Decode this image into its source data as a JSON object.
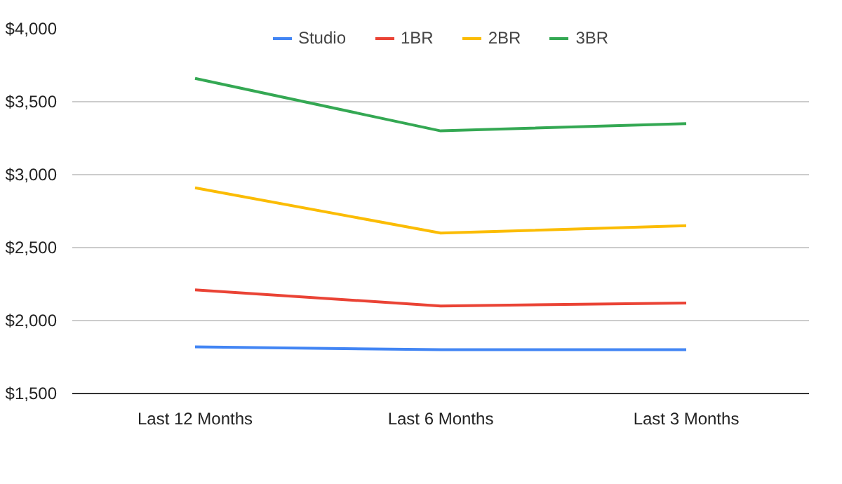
{
  "chart_data": {
    "type": "line",
    "categories": [
      "Last 12 Months",
      "Last 6 Months",
      "Last 3 Months"
    ],
    "series": [
      {
        "name": "Studio",
        "color": "#4285f4",
        "values": [
          1820,
          1800,
          1800
        ]
      },
      {
        "name": "1BR",
        "color": "#ea4335",
        "values": [
          2210,
          2100,
          2120
        ]
      },
      {
        "name": "2BR",
        "color": "#fbbc04",
        "values": [
          2910,
          2600,
          2650
        ]
      },
      {
        "name": "3BR",
        "color": "#34a853",
        "values": [
          3660,
          3300,
          3350
        ]
      }
    ],
    "ylim": [
      1500,
      4000
    ],
    "yticks": [
      {
        "value": 1500,
        "label": "$1,500"
      },
      {
        "value": 2000,
        "label": "$2,000"
      },
      {
        "value": 2500,
        "label": "$2,500"
      },
      {
        "value": 3000,
        "label": "$3,000"
      },
      {
        "value": 3500,
        "label": "$3,500"
      },
      {
        "value": 4000,
        "label": "$4,000"
      }
    ],
    "grid": "y",
    "legend": "top",
    "marker": "none",
    "line_style": "solid"
  }
}
